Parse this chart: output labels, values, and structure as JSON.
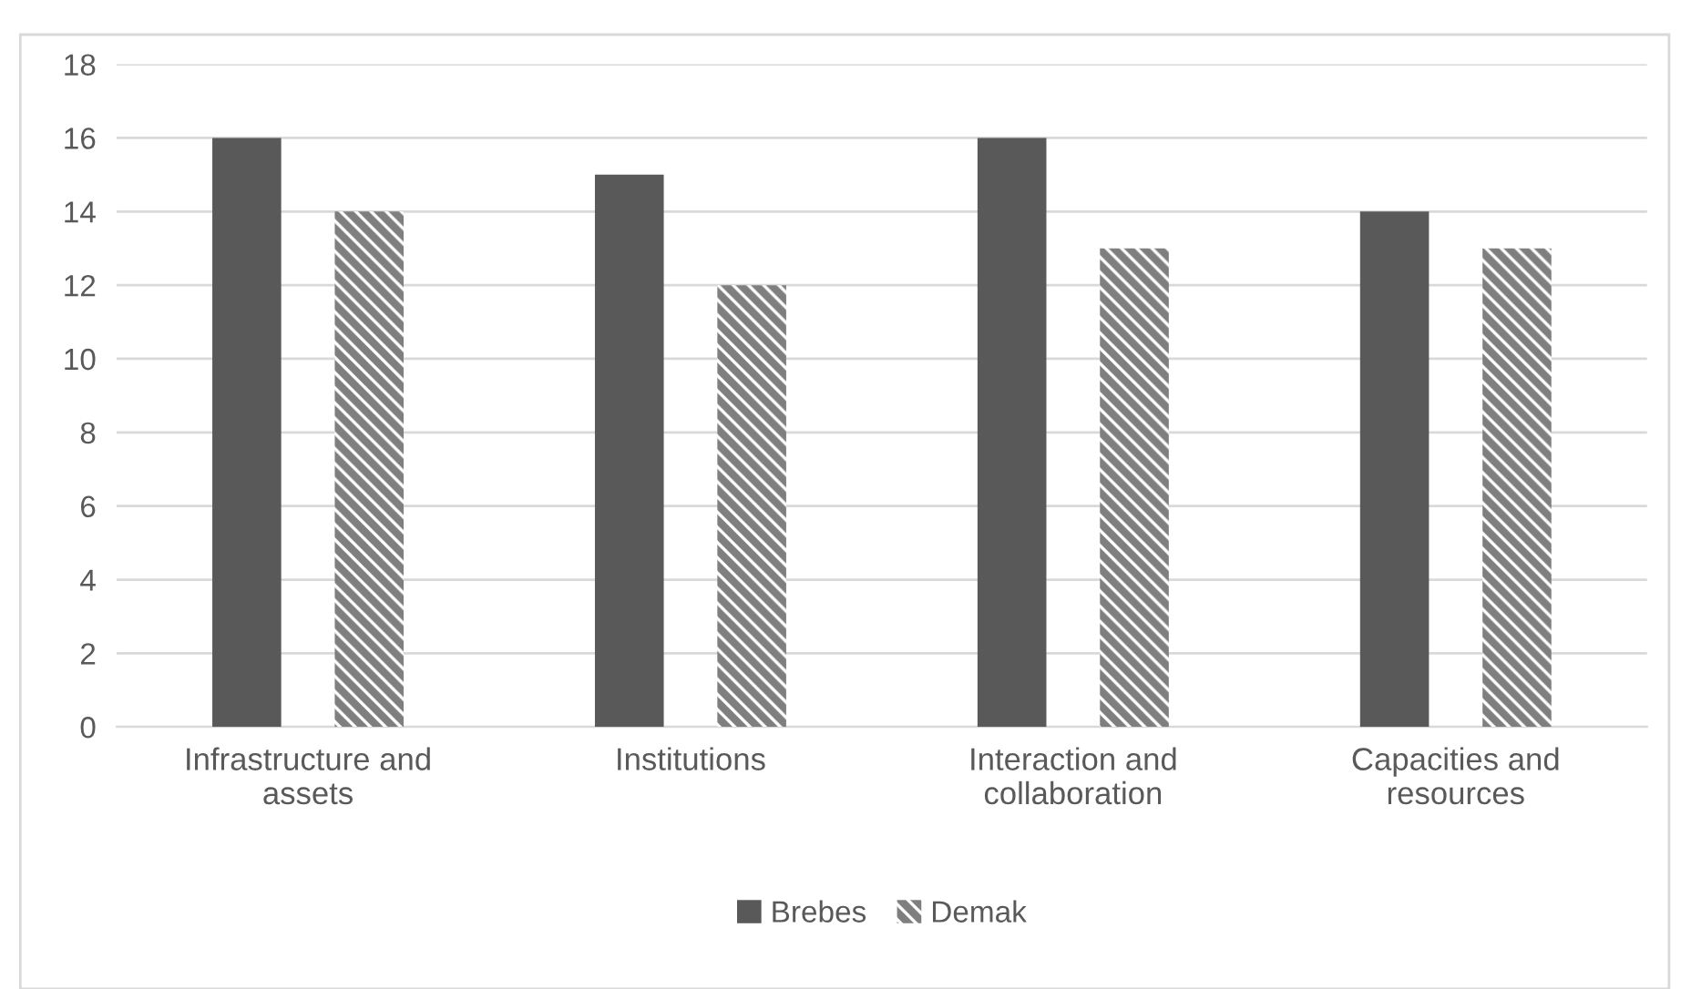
{
  "chart_data": {
    "type": "bar",
    "categories": [
      "Infrastructure and\nassets",
      "Institutions",
      "Interaction and\ncollaboration",
      "Capacities and\nresources"
    ],
    "series": [
      {
        "name": "Brebes",
        "color": "#595959",
        "values": [
          16,
          15,
          16,
          14
        ]
      },
      {
        "name": "Demak",
        "color": "#7f7f7f",
        "values": [
          14,
          12,
          13,
          13
        ]
      }
    ],
    "ylim": [
      0,
      18
    ],
    "yticks": [
      0,
      2,
      4,
      6,
      8,
      10,
      12,
      14,
      16,
      18
    ],
    "grid": "y",
    "legend": "bottom"
  }
}
